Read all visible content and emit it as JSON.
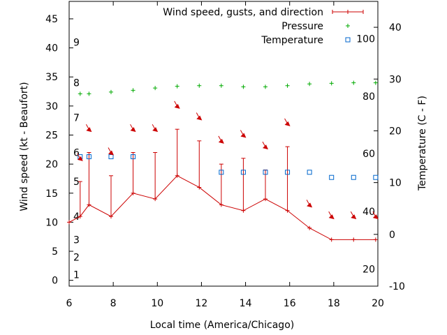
{
  "chart_data": {
    "type": "line",
    "xlabel": "Local time (America/Chicago)",
    "ylabel": "Wind speed (kt - Beaufort)",
    "y2label": "Temperature (C - F)",
    "xlim": [
      6,
      20
    ],
    "ylim": [
      -1,
      48
    ],
    "y2lim": [
      -10,
      45
    ],
    "x_ticks": [
      6,
      8,
      10,
      12,
      14,
      16,
      18,
      20
    ],
    "y_ticks": [
      0,
      5,
      10,
      15,
      20,
      25,
      30,
      35,
      40,
      45
    ],
    "y2_ticks": [
      -10,
      0,
      10,
      20,
      30,
      40
    ],
    "beaufort_labels": [
      {
        "text": "1",
        "y": 1
      },
      {
        "text": "2",
        "y": 4
      },
      {
        "text": "3",
        "y": 7
      },
      {
        "text": "4",
        "y": 11
      },
      {
        "text": "5",
        "y": 17
      },
      {
        "text": "6",
        "y": 22
      },
      {
        "text": "7",
        "y": 28
      },
      {
        "text": "8",
        "y": 34
      },
      {
        "text": "9",
        "y": 41
      }
    ],
    "fahrenheit_labels": [
      {
        "text": "20",
        "y2": -6.7
      },
      {
        "text": "40",
        "y2": 4.4
      },
      {
        "text": "60",
        "y2": 15.6
      },
      {
        "text": "80",
        "y2": 26.7
      },
      {
        "text": "100",
        "y2": 37.8
      }
    ],
    "legend": {
      "placement": "top-right",
      "entries": [
        {
          "label": "Wind speed, gusts, and direction",
          "color": "#cc0000",
          "marker": "line-plus"
        },
        {
          "label": "Pressure",
          "color": "#00aa00",
          "marker": "plus"
        },
        {
          "label": "Temperature",
          "color": "#0066cc",
          "marker": "square"
        }
      ]
    },
    "series": [
      {
        "name": "Wind speed, gusts, and direction",
        "color": "#cc0000",
        "axis": "y",
        "x": [
          6,
          6.5,
          6.9,
          7.9,
          8.9,
          9.9,
          10.9,
          11.9,
          12.9,
          13.9,
          14.9,
          15.9,
          16.9,
          17.9,
          18.9,
          19.9
        ],
        "values": [
          10,
          11,
          13,
          11,
          15,
          14,
          18,
          16,
          13,
          12,
          14,
          12,
          9,
          7,
          7,
          7
        ],
        "gusts": [
          null,
          17,
          22,
          18,
          22,
          22,
          26,
          24,
          20,
          21,
          19,
          23,
          null,
          null,
          null,
          null
        ]
      },
      {
        "name": "Pressure",
        "color": "#00aa00",
        "axis": "y",
        "x": [
          6.5,
          6.9,
          7.9,
          8.9,
          9.9,
          10.9,
          11.9,
          12.9,
          13.9,
          14.9,
          15.9,
          16.9,
          17.9,
          18.9,
          19.9
        ],
        "values": [
          32.1,
          32.1,
          32.4,
          32.7,
          33.1,
          33.4,
          33.5,
          33.5,
          33.3,
          33.3,
          33.5,
          33.8,
          33.9,
          34.0,
          34.0
        ]
      },
      {
        "name": "Temperature",
        "color": "#0066cc",
        "axis": "y2",
        "x": [
          6.5,
          6.9,
          7.9,
          8.9,
          12.9,
          13.9,
          14.9,
          15.9,
          16.9,
          17.9,
          18.9,
          19.9
        ],
        "values": [
          15,
          15,
          15,
          15,
          12,
          12,
          12,
          12,
          12,
          11,
          11,
          11
        ]
      }
    ],
    "direction_arrows": {
      "color": "#cc0000",
      "points": [
        {
          "x": 6.5,
          "y": 21
        },
        {
          "x": 6.9,
          "y": 26
        },
        {
          "x": 7.9,
          "y": 22
        },
        {
          "x": 8.9,
          "y": 26
        },
        {
          "x": 9.9,
          "y": 26
        },
        {
          "x": 10.9,
          "y": 30
        },
        {
          "x": 11.9,
          "y": 28
        },
        {
          "x": 12.9,
          "y": 24
        },
        {
          "x": 13.9,
          "y": 25
        },
        {
          "x": 14.9,
          "y": 23
        },
        {
          "x": 15.9,
          "y": 27
        },
        {
          "x": 16.9,
          "y": 13
        },
        {
          "x": 17.9,
          "y": 11
        },
        {
          "x": 18.9,
          "y": 11
        },
        {
          "x": 19.9,
          "y": 11
        }
      ]
    }
  }
}
